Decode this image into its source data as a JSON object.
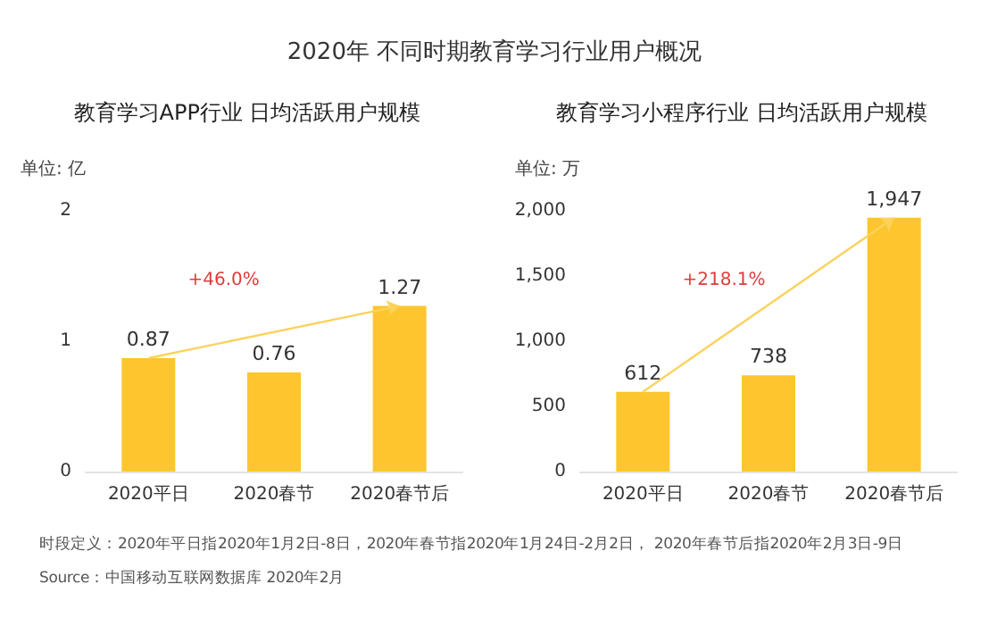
{
  "chart_data": [
    {
      "type": "other",
      "title": "2020年 不同时期教育学习行业用户概况",
      "annotations": [
        "时段定义：2020年平日指2020年1月2日-8日，2020年春节指2020年1月24日-2月2日， 2020年春节后指2020年2月3日-9日",
        "Source：中国移动互联网数据库 2020年2月"
      ]
    },
    {
      "type": "bar",
      "title": "教育学习APP行业 日均活跃用户规模",
      "ylabel": "单位: 亿",
      "categories": [
        "2020平日",
        "2020春节",
        "2020春节后"
      ],
      "values": [
        0.87,
        0.76,
        1.27
      ],
      "color": "#fdc62e",
      "ylim": [
        0,
        2
      ],
      "yticks": [
        0,
        1,
        2
      ],
      "data_labels": true,
      "grid": false,
      "annotations": [
        "+46.0%"
      ]
    },
    {
      "type": "bar",
      "title": "教育学习小程序行业 日均活跃用户规模",
      "ylabel": "单位: 万",
      "categories": [
        "2020平日",
        "2020春节",
        "2020春节后"
      ],
      "values": [
        612,
        738,
        1947
      ],
      "value_labels": [
        "612",
        "738",
        "1,947"
      ],
      "color": "#fdc62e",
      "ylim": [
        0,
        2000
      ],
      "yticks": [
        0,
        {
          "value": 500,
          "label": "500"
        },
        {
          "value": 1000,
          "label": "1,000"
        },
        {
          "value": 1500,
          "label": "1,500"
        },
        {
          "value": 2000,
          "label": "2,000"
        }
      ],
      "grid": false,
      "annotations": [
        "+218.1%"
      ]
    }
  ]
}
